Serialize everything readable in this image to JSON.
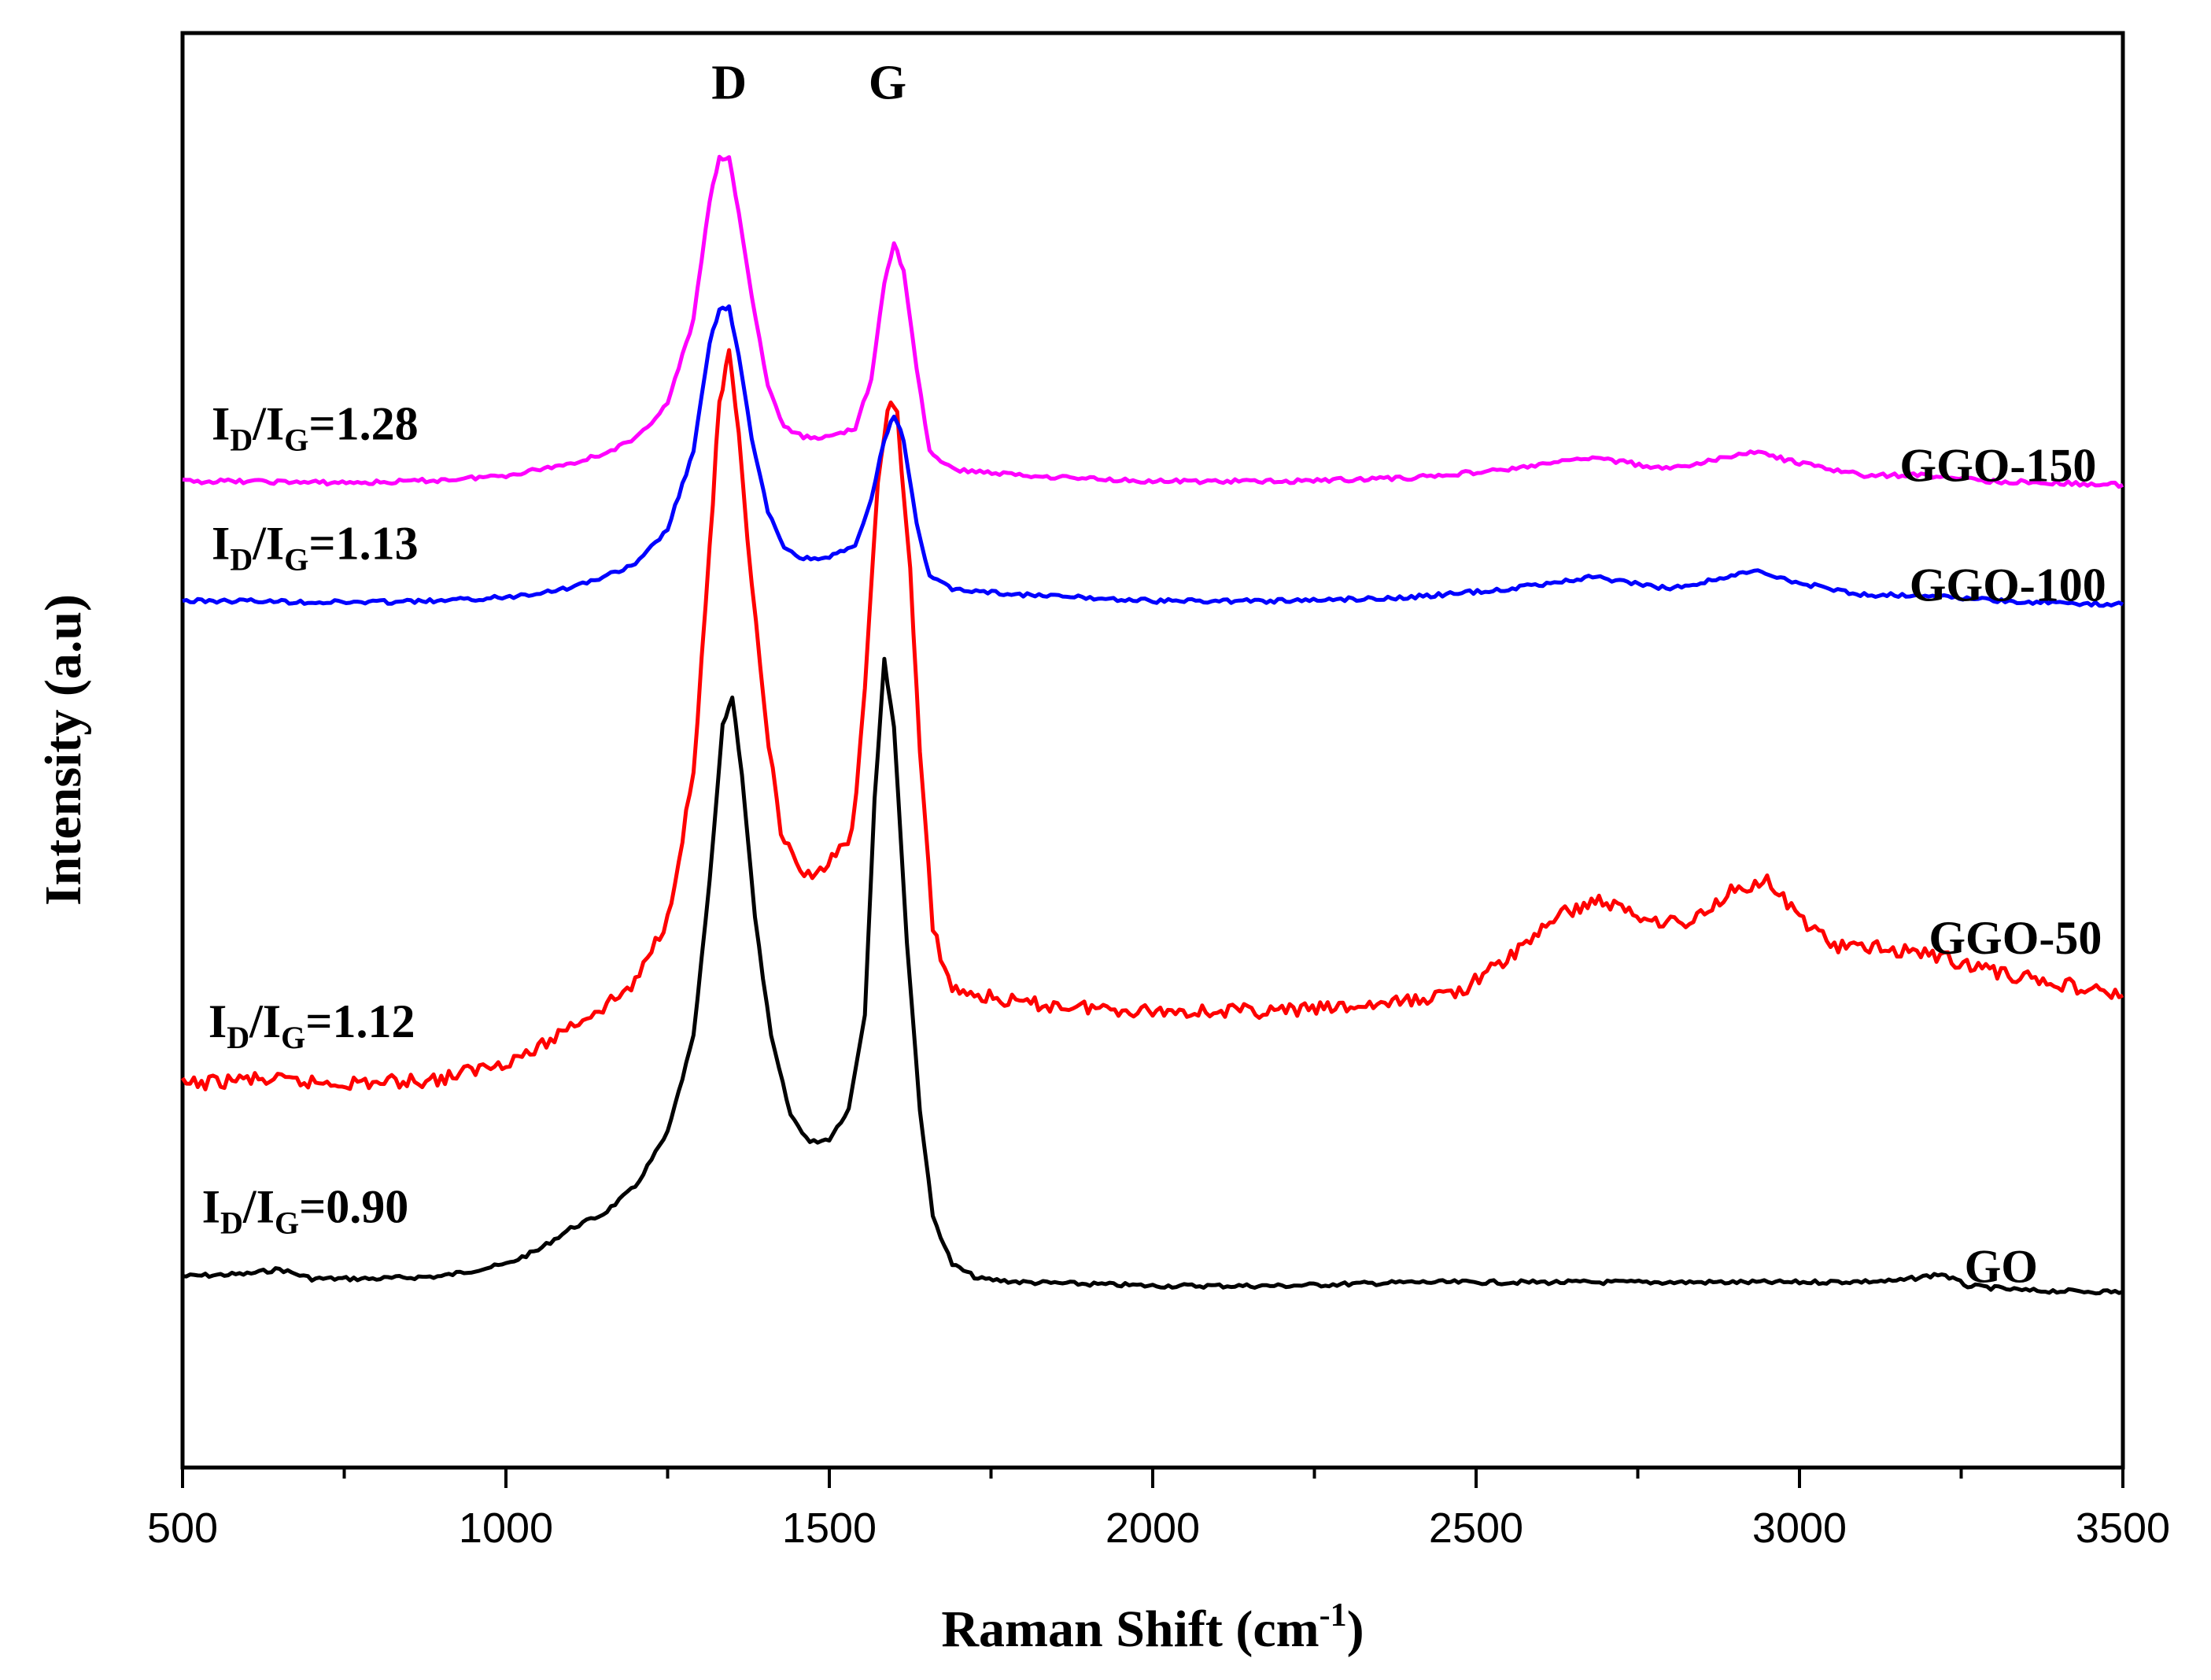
{
  "chart_data": {
    "type": "line",
    "title": "",
    "xlabel": "Raman Shift (cm",
    "xlabel_sup": "-1",
    "xlabel_end": ")",
    "ylabel": "Intensity (a.u)",
    "xlim": [
      500,
      3500
    ],
    "ylim": [
      0,
      12
    ],
    "xticks": [
      500,
      1000,
      1500,
      2000,
      2500,
      3000,
      3500
    ],
    "xtick_labels": [
      "500",
      "1000",
      "1500",
      "2000",
      "2500",
      "3000",
      "3500"
    ],
    "y_ticks_shown": false,
    "peak_labels": [
      {
        "text": "D",
        "x": 1345,
        "y": 11.45
      },
      {
        "text": "G",
        "x": 1590,
        "y": 11.45
      }
    ],
    "series": [
      {
        "name": "GO",
        "color": "#000000",
        "ratio": {
          "prefix": "I",
          "sub1": "D",
          "mid": "/I",
          "sub2": "G",
          "value": "=0.90"
        },
        "label_x": 3255,
        "label_y": 1.55,
        "ratio_x": 530,
        "ratio_y": 2.05,
        "points": [
          [
            500,
            1.6
          ],
          [
            600,
            1.62
          ],
          [
            650,
            1.66
          ],
          [
            700,
            1.58
          ],
          [
            800,
            1.58
          ],
          [
            900,
            1.6
          ],
          [
            1000,
            1.7
          ],
          [
            1050,
            1.82
          ],
          [
            1100,
            2.0
          ],
          [
            1150,
            2.12
          ],
          [
            1200,
            2.35
          ],
          [
            1250,
            2.8
          ],
          [
            1290,
            3.6
          ],
          [
            1315,
            4.9
          ],
          [
            1335,
            6.2
          ],
          [
            1350,
            6.45
          ],
          [
            1365,
            5.8
          ],
          [
            1385,
            4.6
          ],
          [
            1410,
            3.6
          ],
          [
            1440,
            2.95
          ],
          [
            1470,
            2.72
          ],
          [
            1500,
            2.75
          ],
          [
            1530,
            3.0
          ],
          [
            1555,
            3.8
          ],
          [
            1570,
            5.6
          ],
          [
            1585,
            6.75
          ],
          [
            1600,
            6.2
          ],
          [
            1620,
            4.4
          ],
          [
            1640,
            3.0
          ],
          [
            1660,
            2.1
          ],
          [
            1690,
            1.7
          ],
          [
            1730,
            1.58
          ],
          [
            1800,
            1.55
          ],
          [
            2000,
            1.52
          ],
          [
            2200,
            1.52
          ],
          [
            2400,
            1.55
          ],
          [
            2600,
            1.55
          ],
          [
            2800,
            1.55
          ],
          [
            3000,
            1.55
          ],
          [
            3150,
            1.56
          ],
          [
            3220,
            1.62
          ],
          [
            3260,
            1.52
          ],
          [
            3350,
            1.48
          ],
          [
            3500,
            1.47
          ]
        ]
      },
      {
        "name": "GGO-50",
        "color": "#ff0000",
        "ratio": {
          "prefix": "I",
          "sub1": "D",
          "mid": "/I",
          "sub2": "G",
          "value": "=1.12"
        },
        "label_x": 3200,
        "label_y": 4.3,
        "ratio_x": 540,
        "ratio_y": 3.6,
        "points": [
          [
            500,
            3.2
          ],
          [
            600,
            3.25
          ],
          [
            700,
            3.22
          ],
          [
            800,
            3.22
          ],
          [
            900,
            3.25
          ],
          [
            1000,
            3.4
          ],
          [
            1050,
            3.5
          ],
          [
            1100,
            3.7
          ],
          [
            1150,
            3.85
          ],
          [
            1200,
            4.05
          ],
          [
            1250,
            4.6
          ],
          [
            1290,
            5.8
          ],
          [
            1315,
            7.7
          ],
          [
            1330,
            8.9
          ],
          [
            1345,
            9.3
          ],
          [
            1360,
            8.6
          ],
          [
            1380,
            7.4
          ],
          [
            1400,
            6.3
          ],
          [
            1425,
            5.3
          ],
          [
            1455,
            4.95
          ],
          [
            1480,
            5.0
          ],
          [
            1510,
            5.1
          ],
          [
            1535,
            5.3
          ],
          [
            1555,
            6.5
          ],
          [
            1575,
            8.2
          ],
          [
            1590,
            8.9
          ],
          [
            1605,
            8.8
          ],
          [
            1625,
            7.5
          ],
          [
            1640,
            6.0
          ],
          [
            1660,
            4.5
          ],
          [
            1690,
            4.0
          ],
          [
            1730,
            3.95
          ],
          [
            1800,
            3.88
          ],
          [
            1900,
            3.85
          ],
          [
            2000,
            3.82
          ],
          [
            2100,
            3.82
          ],
          [
            2200,
            3.82
          ],
          [
            2300,
            3.85
          ],
          [
            2400,
            3.9
          ],
          [
            2480,
            4.0
          ],
          [
            2560,
            4.3
          ],
          [
            2620,
            4.6
          ],
          [
            2690,
            4.75
          ],
          [
            2760,
            4.6
          ],
          [
            2830,
            4.55
          ],
          [
            2900,
            4.85
          ],
          [
            2950,
            4.9
          ],
          [
            3000,
            4.6
          ],
          [
            3060,
            4.35
          ],
          [
            3120,
            4.35
          ],
          [
            3200,
            4.3
          ],
          [
            3300,
            4.15
          ],
          [
            3400,
            4.05
          ],
          [
            3500,
            3.95
          ]
        ]
      },
      {
        "name": "GGO-100",
        "color": "#0000ff",
        "ratio": {
          "prefix": "I",
          "sub1": "D",
          "mid": "/I",
          "sub2": "G",
          "value": "=1.13"
        },
        "label_x": 3170,
        "label_y": 7.25,
        "ratio_x": 545,
        "ratio_y": 7.6,
        "points": [
          [
            500,
            7.25
          ],
          [
            600,
            7.25
          ],
          [
            700,
            7.24
          ],
          [
            800,
            7.24
          ],
          [
            900,
            7.25
          ],
          [
            1000,
            7.28
          ],
          [
            1100,
            7.36
          ],
          [
            1150,
            7.45
          ],
          [
            1200,
            7.55
          ],
          [
            1250,
            7.85
          ],
          [
            1290,
            8.5
          ],
          [
            1315,
            9.4
          ],
          [
            1330,
            9.7
          ],
          [
            1345,
            9.7
          ],
          [
            1360,
            9.3
          ],
          [
            1380,
            8.6
          ],
          [
            1405,
            8.0
          ],
          [
            1430,
            7.7
          ],
          [
            1460,
            7.6
          ],
          [
            1500,
            7.62
          ],
          [
            1540,
            7.7
          ],
          [
            1565,
            8.1
          ],
          [
            1585,
            8.6
          ],
          [
            1600,
            8.8
          ],
          [
            1615,
            8.6
          ],
          [
            1635,
            7.9
          ],
          [
            1655,
            7.45
          ],
          [
            1690,
            7.35
          ],
          [
            1800,
            7.3
          ],
          [
            2000,
            7.25
          ],
          [
            2200,
            7.25
          ],
          [
            2400,
            7.28
          ],
          [
            2550,
            7.35
          ],
          [
            2680,
            7.45
          ],
          [
            2800,
            7.35
          ],
          [
            2930,
            7.5
          ],
          [
            3000,
            7.4
          ],
          [
            3100,
            7.3
          ],
          [
            3200,
            7.3
          ],
          [
            3300,
            7.25
          ],
          [
            3500,
            7.22
          ]
        ]
      },
      {
        "name": "GGO-150",
        "color": "#ff00ff",
        "ratio": {
          "prefix": "I",
          "sub1": "D",
          "mid": "/I",
          "sub2": "G",
          "value": "=1.28"
        },
        "label_x": 3155,
        "label_y": 8.25,
        "ratio_x": 545,
        "ratio_y": 8.6,
        "points": [
          [
            500,
            8.25
          ],
          [
            600,
            8.25
          ],
          [
            700,
            8.24
          ],
          [
            800,
            8.24
          ],
          [
            900,
            8.26
          ],
          [
            1000,
            8.3
          ],
          [
            1100,
            8.4
          ],
          [
            1150,
            8.48
          ],
          [
            1200,
            8.6
          ],
          [
            1250,
            8.9
          ],
          [
            1290,
            9.6
          ],
          [
            1315,
            10.6
          ],
          [
            1330,
            10.95
          ],
          [
            1345,
            10.95
          ],
          [
            1360,
            10.5
          ],
          [
            1380,
            9.8
          ],
          [
            1405,
            9.05
          ],
          [
            1430,
            8.7
          ],
          [
            1460,
            8.62
          ],
          [
            1500,
            8.62
          ],
          [
            1540,
            8.7
          ],
          [
            1565,
            9.1
          ],
          [
            1585,
            9.9
          ],
          [
            1600,
            10.25
          ],
          [
            1615,
            10.0
          ],
          [
            1635,
            9.2
          ],
          [
            1655,
            8.5
          ],
          [
            1690,
            8.35
          ],
          [
            1800,
            8.3
          ],
          [
            2000,
            8.25
          ],
          [
            2200,
            8.25
          ],
          [
            2400,
            8.28
          ],
          [
            2550,
            8.35
          ],
          [
            2680,
            8.45
          ],
          [
            2800,
            8.35
          ],
          [
            2930,
            8.5
          ],
          [
            3000,
            8.4
          ],
          [
            3100,
            8.3
          ],
          [
            3200,
            8.3
          ],
          [
            3300,
            8.25
          ],
          [
            3500,
            8.22
          ]
        ]
      }
    ]
  }
}
